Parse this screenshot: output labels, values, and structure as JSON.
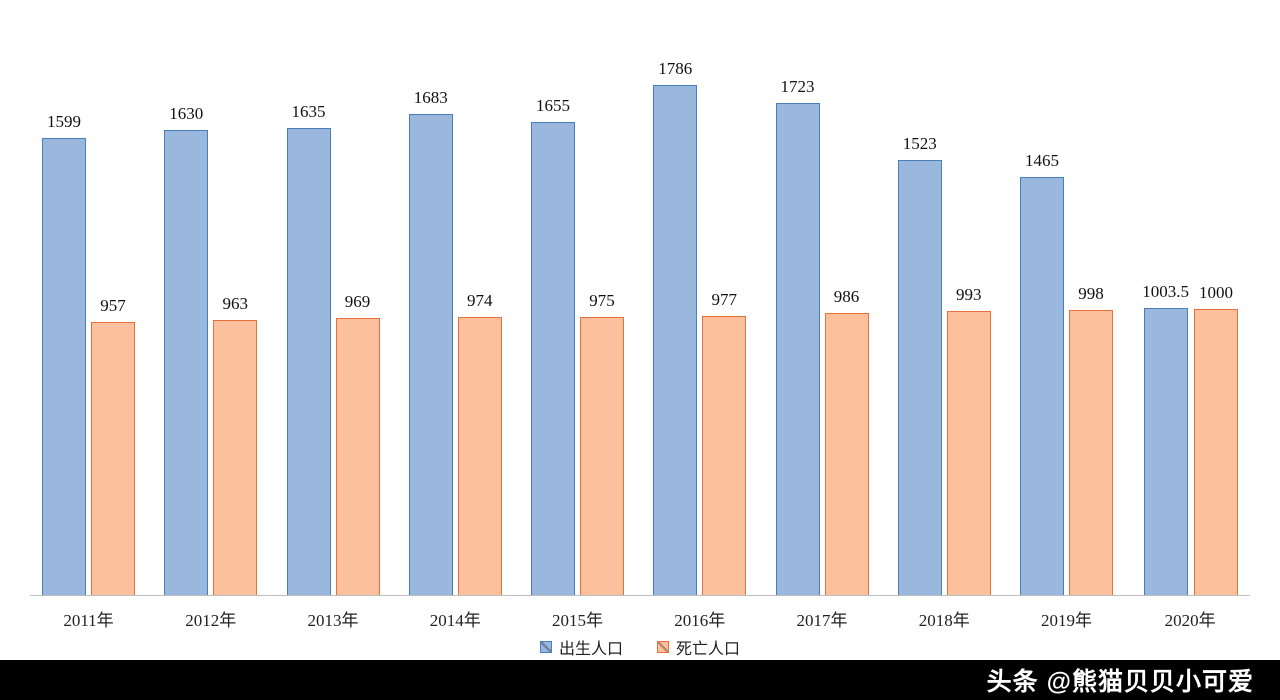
{
  "chart_data": {
    "type": "bar",
    "title": "",
    "xlabel": "",
    "ylabel": "",
    "categories": [
      "2011年",
      "2012年",
      "2013年",
      "2014年",
      "2015年",
      "2016年",
      "2017年",
      "2018年",
      "2019年",
      "2020年"
    ],
    "series": [
      {
        "id": "birth",
        "name": "出生人口",
        "fill": "#9ab7dd",
        "border": "#4a7ebb",
        "values": [
          1599,
          1630,
          1635,
          1683,
          1655,
          1786,
          1723,
          1523,
          1465,
          1003.5
        ]
      },
      {
        "id": "death",
        "name": "死亡人口",
        "fill": "#fcc09d",
        "border": "#e9703a",
        "values": [
          957,
          963,
          969,
          974,
          975,
          977,
          986,
          993,
          998,
          1000
        ]
      }
    ],
    "ylim": [
      0,
      1800
    ],
    "grid": false,
    "legend_position": "bottom"
  },
  "footer": {
    "watermark": "头条 @熊猫贝贝小可爱"
  }
}
